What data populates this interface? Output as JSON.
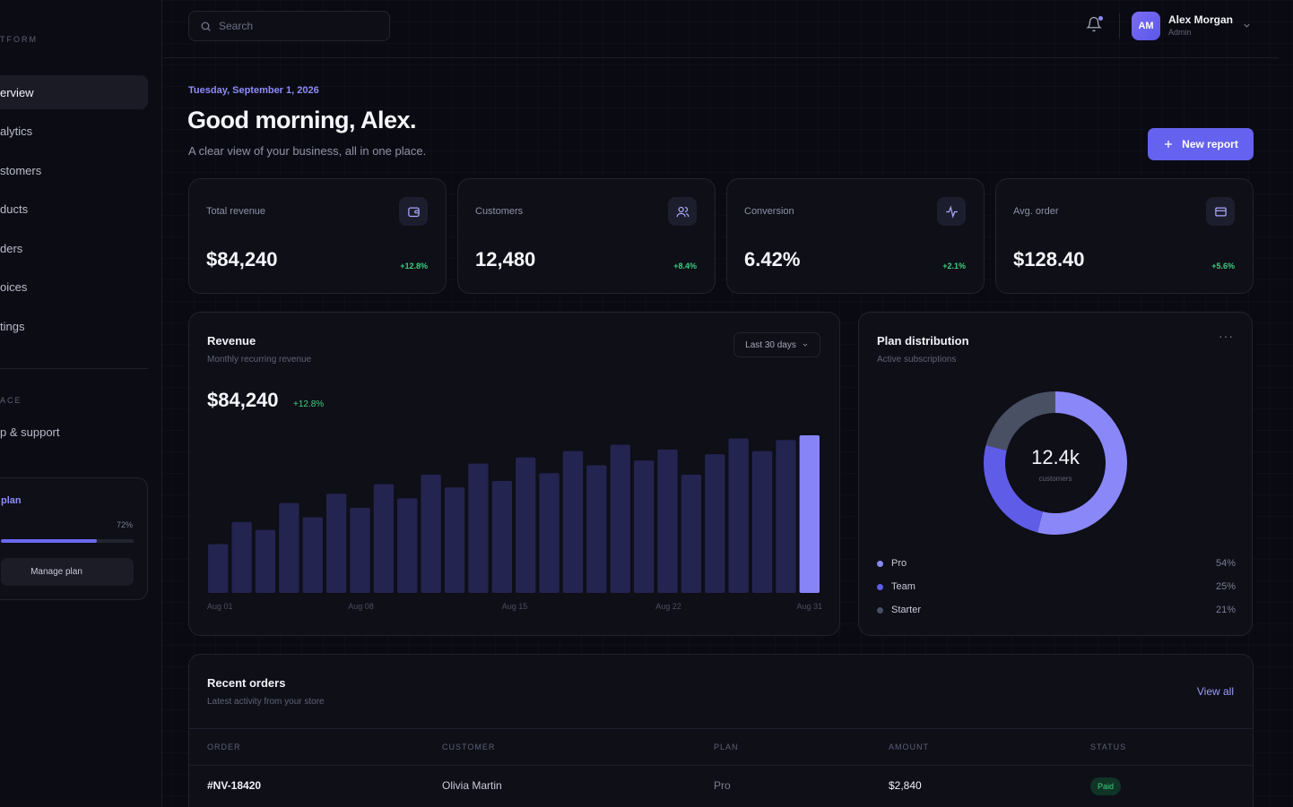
{
  "sidebar": {
    "section_platform": "TFORM",
    "items": [
      {
        "label": "erview",
        "active": true
      },
      {
        "label": "alytics"
      },
      {
        "label": "stomers"
      },
      {
        "label": "ducts"
      },
      {
        "label": "ders"
      },
      {
        "label": "oices"
      },
      {
        "label": "tings"
      }
    ],
    "section_workspace": "ACE",
    "support_label": "p & support",
    "plan": {
      "title": "plan",
      "percent_label": "72%",
      "fill_fraction": 0.72,
      "button_label": "Manage plan"
    }
  },
  "topbar": {
    "search_placeholder": "Search",
    "user": {
      "initials": "AM",
      "name": "Alex Morgan",
      "role": "Admin"
    }
  },
  "header": {
    "date": "Tuesday, September 1, 2026",
    "greeting": "Good morning, Alex.",
    "subtitle": "A clear view of your business, all in one place.",
    "new_report_label": "New report"
  },
  "kpis": [
    {
      "label": "Total revenue",
      "value": "$84,240",
      "delta": "+12.8%",
      "icon": "wallet-icon"
    },
    {
      "label": "Customers",
      "value": "12,480",
      "delta": "+8.4%",
      "icon": "users-icon"
    },
    {
      "label": "Conversion",
      "value": "6.42%",
      "delta": "+2.1%",
      "icon": "activity-icon"
    },
    {
      "label": "Avg. order",
      "value": "$128.40",
      "delta": "+5.6%",
      "icon": "credit-card-icon"
    }
  ],
  "revenue": {
    "title": "Revenue",
    "subtitle": "Monthly recurring revenue",
    "range_label": "Last 30 days",
    "value": "$84,240",
    "delta": "+12.8%"
  },
  "chart_data": {
    "type": "bar",
    "title": "Revenue",
    "tick_labels": [
      "Aug 01",
      "Aug 08",
      "Aug 15",
      "Aug 22",
      "Aug 31"
    ],
    "values": [
      31,
      45,
      40,
      57,
      48,
      63,
      54,
      69,
      60,
      75,
      67,
      82,
      71,
      86,
      76,
      90,
      81,
      94,
      84,
      91,
      75,
      88,
      98,
      90,
      97,
      100
    ],
    "highlight_last": true,
    "colors": {
      "bar": "#23244f",
      "highlight": "#8784f8"
    }
  },
  "distribution": {
    "title": "Plan distribution",
    "subtitle": "Active subscriptions",
    "center_value": "12.4k",
    "center_caption": "customers",
    "segments": [
      {
        "name": "Pro",
        "percent": 54,
        "percent_label": "54%",
        "color": "#8a87f8"
      },
      {
        "name": "Team",
        "percent": 25,
        "percent_label": "25%",
        "color": "#5f5ce8"
      },
      {
        "name": "Starter",
        "percent": 21,
        "percent_label": "21%",
        "color": "#4a5063"
      }
    ]
  },
  "orders": {
    "title": "Recent orders",
    "subtitle": "Latest activity from your store",
    "view_all": "View all",
    "columns": [
      "Order",
      "Customer",
      "Plan",
      "Amount",
      "Status"
    ],
    "rows": [
      {
        "order": "#NV-18420",
        "customer": "Olivia Martin",
        "plan": "Pro",
        "amount": "$2,840",
        "status": "Paid"
      }
    ]
  }
}
